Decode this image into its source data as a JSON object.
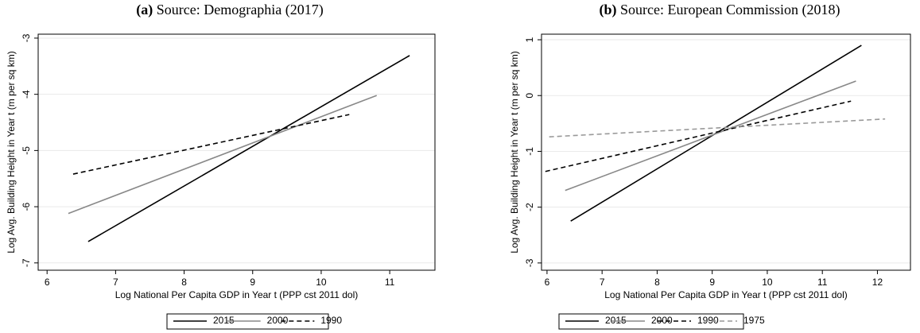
{
  "chart_data": [
    {
      "type": "line",
      "panel": "(a)",
      "title": "Source: Demographia (2017)",
      "x_label": "Log National Per Capita GDP in Year t (PPP cst 2011 dol)",
      "y_label": "Log Avg. Building Height in Year t (m per sq km)",
      "xlim": [
        5.87,
        11.66
      ],
      "ylim": [
        -7.13,
        -2.93
      ],
      "xticks": [
        6,
        7,
        8,
        9,
        10,
        11
      ],
      "yticks": [
        -7,
        -6,
        -5,
        -4,
        -3
      ],
      "grid": true,
      "series": [
        {
          "name": "2015",
          "color": "#000000",
          "dash": false,
          "x": [
            6.6,
            11.29
          ],
          "values": [
            -6.62,
            -3.31
          ]
        },
        {
          "name": "2000",
          "color": "#888888",
          "dash": false,
          "x": [
            6.31,
            10.81
          ],
          "values": [
            -6.12,
            -4.02
          ]
        },
        {
          "name": "1990",
          "color": "#000000",
          "dash": true,
          "x": [
            6.38,
            10.41
          ],
          "values": [
            -5.42,
            -4.36
          ]
        }
      ]
    },
    {
      "type": "line",
      "panel": "(b)",
      "title": "Source: European Commission (2018)",
      "x_label": "Log National Per Capita GDP in Year t (PPP cst 2011 dol)",
      "y_label": "Log Avg. Building Height in Year t (m per sq km)",
      "xlim": [
        5.9,
        12.6
      ],
      "ylim": [
        -3.13,
        1.1
      ],
      "xticks": [
        6,
        7,
        8,
        9,
        10,
        11,
        12
      ],
      "yticks": [
        -3,
        -2,
        -1,
        0,
        1
      ],
      "grid": true,
      "series": [
        {
          "name": "2015",
          "color": "#000000",
          "dash": false,
          "x": [
            6.43,
            11.71
          ],
          "values": [
            -2.25,
            0.9
          ]
        },
        {
          "name": "2000",
          "color": "#888888",
          "dash": false,
          "x": [
            6.33,
            11.61
          ],
          "values": [
            -1.7,
            0.26
          ]
        },
        {
          "name": "1990",
          "color": "#000000",
          "dash": true,
          "x": [
            5.97,
            11.52
          ],
          "values": [
            -1.36,
            -0.1
          ]
        },
        {
          "name": "1975",
          "color": "#999999",
          "dash": true,
          "x": [
            6.04,
            12.14
          ],
          "values": [
            -0.74,
            -0.42
          ]
        }
      ]
    }
  ]
}
